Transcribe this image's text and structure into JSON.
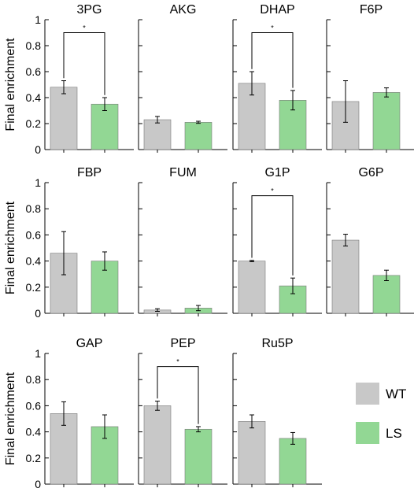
{
  "chart_data": {
    "type": "bar",
    "layout": "small-multiples grid",
    "ylabel": "Final enrichment",
    "ylim": [
      0,
      1
    ],
    "yticks": [
      "0",
      "0.2",
      "0.4",
      "0.6",
      "0.8",
      "1"
    ],
    "grid": false,
    "legend": {
      "placement": "bottom-right",
      "entries": [
        {
          "name": "WT",
          "color": "#c8c8c8"
        },
        {
          "name": "LS",
          "color": "#92d794"
        }
      ]
    },
    "series": [
      {
        "name": "WT",
        "color": "#c8c8c8"
      },
      {
        "name": "LS",
        "color": "#92d794"
      }
    ],
    "significance_marker": "*",
    "panels": [
      {
        "title": "3PG",
        "values": [
          0.48,
          0.35
        ],
        "errors": [
          0.05,
          0.05
        ],
        "significant": true
      },
      {
        "title": "AKG",
        "values": [
          0.23,
          0.21
        ],
        "errors": [
          0.025,
          0.008
        ],
        "significant": false
      },
      {
        "title": "DHAP",
        "values": [
          0.51,
          0.38
        ],
        "errors": [
          0.09,
          0.075
        ],
        "significant": true
      },
      {
        "title": "F6P",
        "values": [
          0.37,
          0.44
        ],
        "errors": [
          0.16,
          0.035
        ],
        "significant": false
      },
      {
        "title": "FBP",
        "values": [
          0.46,
          0.4
        ],
        "errors": [
          0.165,
          0.07
        ],
        "significant": false
      },
      {
        "title": "FUM",
        "values": [
          0.025,
          0.04
        ],
        "errors": [
          0.01,
          0.02
        ],
        "significant": false
      },
      {
        "title": "G1P",
        "values": [
          0.4,
          0.21
        ],
        "errors": [
          0.005,
          0.06
        ],
        "significant": true
      },
      {
        "title": "G6P",
        "values": [
          0.56,
          0.29
        ],
        "errors": [
          0.045,
          0.04
        ],
        "significant": false
      },
      {
        "title": "GAP",
        "values": [
          0.54,
          0.44
        ],
        "errors": [
          0.09,
          0.09
        ],
        "significant": false
      },
      {
        "title": "PEP",
        "values": [
          0.6,
          0.42
        ],
        "errors": [
          0.035,
          0.02
        ],
        "significant": true
      },
      {
        "title": "Ru5P",
        "values": [
          0.48,
          0.35
        ],
        "errors": [
          0.05,
          0.045
        ],
        "significant": false
      }
    ]
  }
}
